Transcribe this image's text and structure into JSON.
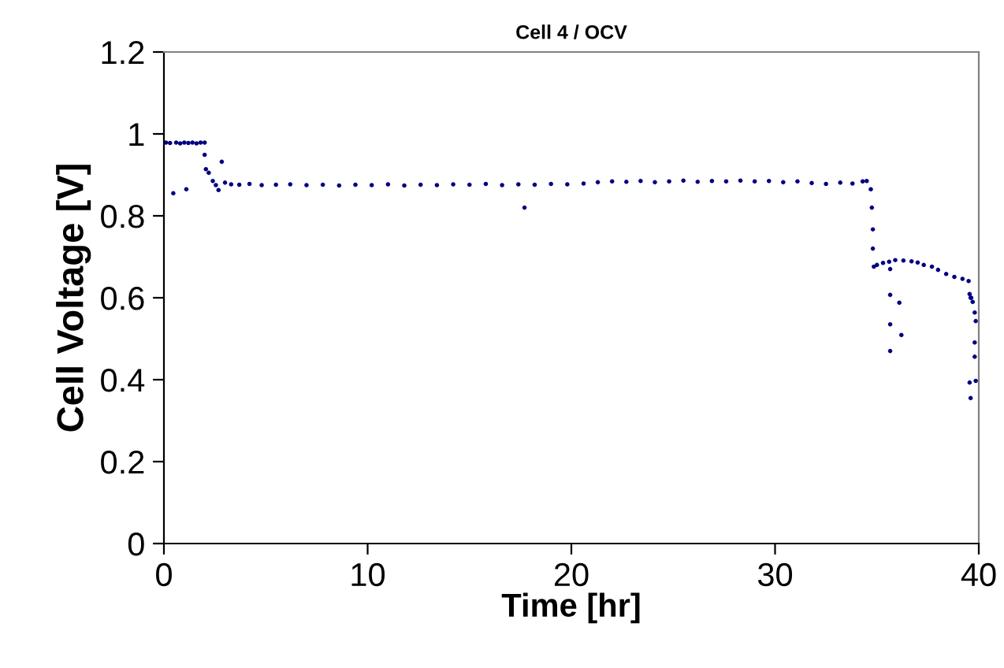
{
  "chart_data": {
    "type": "scatter",
    "title": "Cell 4 / OCV",
    "xlabel": "Time [hr]",
    "ylabel": "Cell Voltage [V]",
    "xlim": [
      0,
      40
    ],
    "xticks": [
      0,
      10,
      20,
      30,
      40
    ],
    "ylim": [
      0,
      1.2
    ],
    "yticks": [
      0,
      0.2,
      0.4,
      0.6,
      0.8,
      1,
      1.2
    ],
    "grid": false,
    "marker": "circle",
    "series": [
      {
        "color": "#000080",
        "x": [
          0.1,
          0.3,
          0.46,
          0.6,
          0.8,
          1.0,
          1.1,
          1.2,
          1.4,
          1.6,
          1.8,
          2.0,
          2.0,
          2.06,
          2.2,
          2.4,
          2.55,
          2.68,
          2.84,
          3.0,
          3.3,
          3.7,
          4.2,
          4.8,
          5.5,
          6.2,
          7.0,
          7.8,
          8.6,
          9.4,
          10.2,
          11.0,
          11.8,
          12.6,
          13.4,
          14.2,
          15.0,
          15.8,
          16.6,
          17.4,
          17.7,
          18.2,
          19.0,
          19.8,
          20.6,
          21.3,
          22.0,
          22.7,
          23.4,
          24.1,
          24.8,
          25.5,
          26.2,
          26.9,
          27.6,
          28.3,
          29.0,
          29.7,
          30.4,
          31.1,
          31.8,
          32.5,
          33.2,
          33.8,
          34.3,
          34.5,
          34.7,
          34.75,
          34.8,
          34.8,
          34.85,
          35.0,
          35.3,
          35.6,
          35.65,
          35.65,
          35.65,
          35.65,
          35.9,
          36.1,
          36.2,
          36.3,
          36.7,
          37.0,
          37.3,
          37.7,
          38.0,
          38.4,
          38.8,
          39.2,
          39.5,
          39.55,
          39.6,
          39.63,
          39.7,
          39.8,
          39.85,
          39.8,
          39.8,
          39.55,
          39.85,
          39.6
        ],
        "values": [
          0.979,
          0.978,
          0.855,
          0.979,
          0.977,
          0.979,
          0.865,
          0.978,
          0.979,
          0.977,
          0.979,
          0.979,
          0.949,
          0.914,
          0.905,
          0.885,
          0.875,
          0.863,
          0.932,
          0.881,
          0.877,
          0.876,
          0.878,
          0.875,
          0.876,
          0.877,
          0.875,
          0.876,
          0.874,
          0.876,
          0.875,
          0.877,
          0.874,
          0.876,
          0.875,
          0.877,
          0.876,
          0.878,
          0.875,
          0.877,
          0.82,
          0.876,
          0.878,
          0.877,
          0.879,
          0.882,
          0.884,
          0.883,
          0.885,
          0.882,
          0.884,
          0.886,
          0.883,
          0.885,
          0.884,
          0.886,
          0.884,
          0.885,
          0.882,
          0.884,
          0.88,
          0.878,
          0.881,
          0.879,
          0.884,
          0.885,
          0.865,
          0.82,
          0.767,
          0.72,
          0.676,
          0.68,
          0.685,
          0.688,
          0.67,
          0.607,
          0.535,
          0.47,
          0.692,
          0.588,
          0.509,
          0.691,
          0.689,
          0.686,
          0.68,
          0.676,
          0.668,
          0.658,
          0.651,
          0.646,
          0.641,
          0.609,
          0.6,
          0.6,
          0.59,
          0.564,
          0.543,
          0.491,
          0.456,
          0.393,
          0.397,
          0.355
        ]
      }
    ]
  }
}
